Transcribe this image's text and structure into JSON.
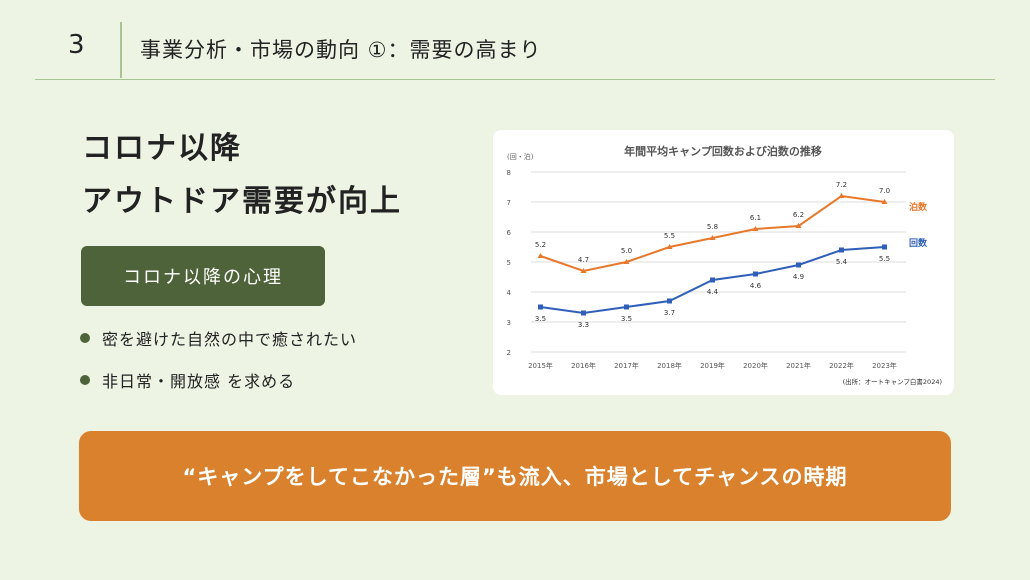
{
  "header": {
    "section_number": "3",
    "title": "事業分析・市場の動向 ①：需要の高まり"
  },
  "headline": {
    "line1": "コロナ以降",
    "line2": "アウトドア需要が向上"
  },
  "psychology_box": {
    "label": "コロナ以降の心理"
  },
  "bullets": [
    "密を避けた自然の中で癒されたい",
    "非日常・開放感 を求める"
  ],
  "banner": {
    "text": "“キャンプをしてこなかった層”も流入、市場としてチャンスの時期"
  },
  "chart_data": {
    "type": "line",
    "title": "年間平均キャンプ回数および泊数の推移",
    "unit_label": "(回・泊)",
    "source": "(出所：オートキャンプ白書2024)",
    "categories": [
      "2015年",
      "2016年",
      "2017年",
      "2018年",
      "2019年",
      "2020年",
      "2021年",
      "2022年",
      "2023年"
    ],
    "series": [
      {
        "name": "泊数",
        "color": "#e8782c",
        "marker": "triangle",
        "values": [
          5.2,
          4.7,
          5.0,
          5.5,
          5.8,
          6.1,
          6.2,
          7.2,
          7.0
        ]
      },
      {
        "name": "回数",
        "color": "#2f5fb8",
        "marker": "square",
        "values": [
          3.5,
          3.3,
          3.5,
          3.7,
          4.4,
          4.6,
          4.9,
          5.4,
          5.5
        ]
      }
    ],
    "yticks": [
      "2",
      "3",
      "4",
      "5",
      "6",
      "7",
      "8"
    ],
    "ylim": [
      2,
      8
    ],
    "grid": true,
    "legend": "right, at line ends"
  }
}
